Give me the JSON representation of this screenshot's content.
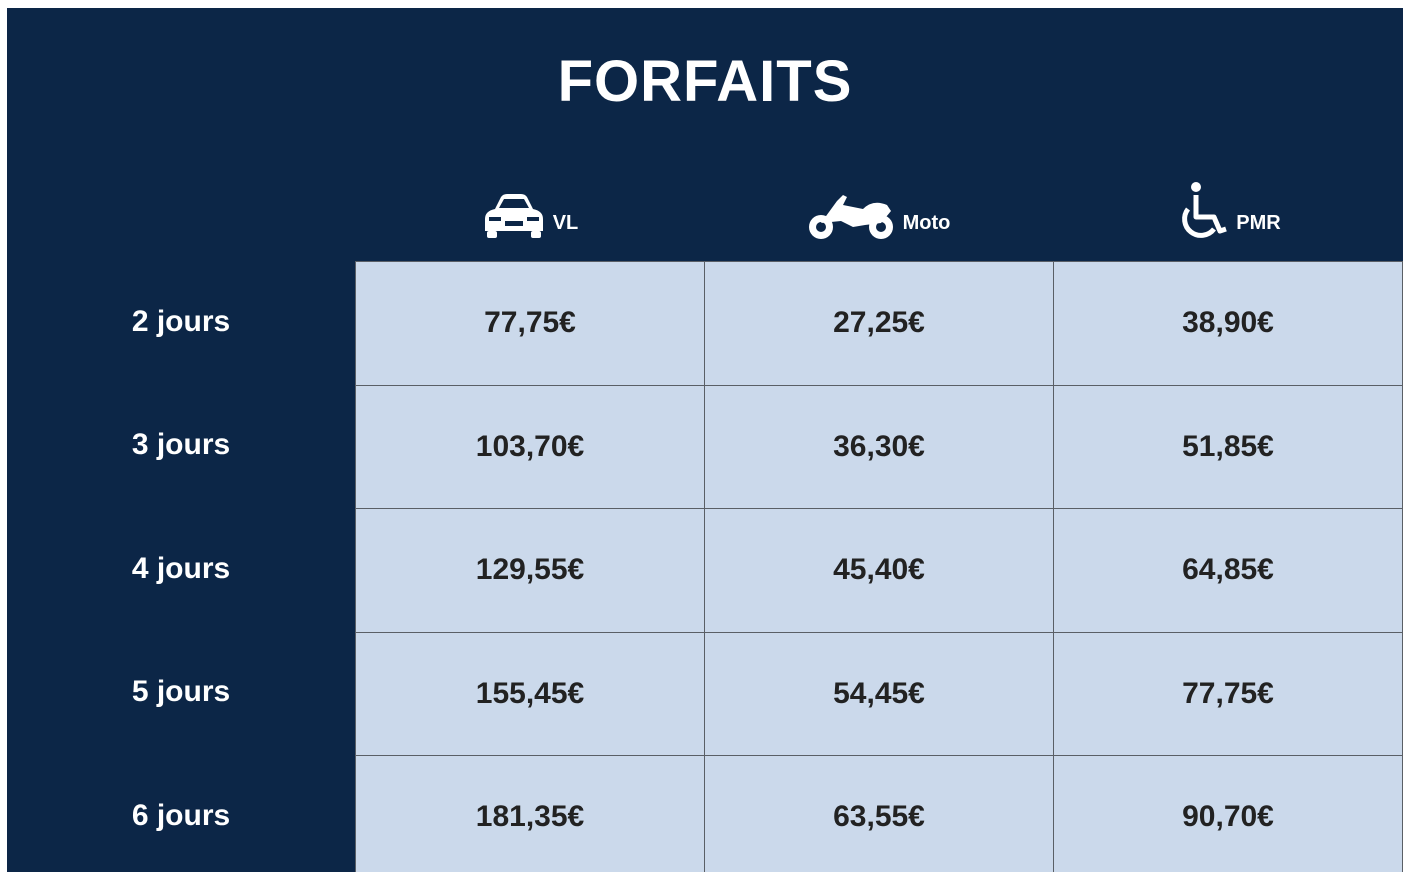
{
  "title": "FORFAITS",
  "table": {
    "columns": [
      "VL",
      "Moto",
      "PMR"
    ],
    "rows": [
      {
        "label": "2 jours",
        "cells": [
          "77,75€",
          "27,25€",
          "38,90€"
        ]
      },
      {
        "label": "3 jours",
        "cells": [
          "103,70€",
          "36,30€",
          "51,85€"
        ]
      },
      {
        "label": "4 jours",
        "cells": [
          "129,55€",
          "45,40€",
          "64,85€"
        ]
      },
      {
        "label": "5 jours",
        "cells": [
          "155,45€",
          "54,45€",
          "77,75€"
        ]
      },
      {
        "label": "6 jours",
        "cells": [
          "181,35€",
          "63,55€",
          "90,70€"
        ]
      }
    ]
  }
}
